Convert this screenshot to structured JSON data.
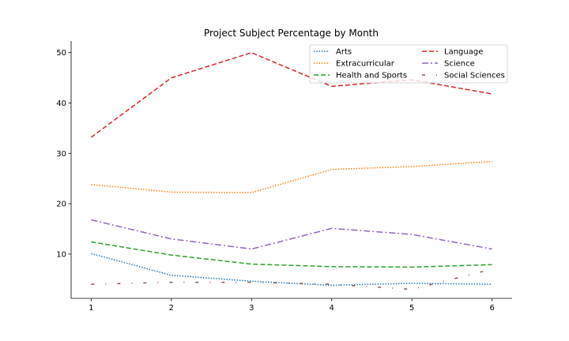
{
  "chart_data": {
    "type": "line",
    "title": "Project Subject Percentage by Month",
    "xlabel": "",
    "ylabel": "",
    "x": [
      1,
      2,
      3,
      4,
      5,
      6
    ],
    "xlim": [
      0.75,
      6.25
    ],
    "ylim": [
      1.2,
      52.3
    ],
    "xticks": [
      1,
      2,
      3,
      4,
      5,
      6
    ],
    "yticks": [
      10,
      20,
      30,
      40,
      50
    ],
    "grid": false,
    "legend": {
      "placement": "top-right",
      "columns": 2
    },
    "series": [
      {
        "name": "Arts",
        "color": "#1f77b4",
        "linestyle": "dotted",
        "values": [
          10.1,
          5.8,
          4.6,
          3.8,
          4.2,
          4.0
        ]
      },
      {
        "name": "Extracurricular",
        "color": "#ff7f0e",
        "linestyle": "dotted",
        "values": [
          23.8,
          22.3,
          22.2,
          26.8,
          27.4,
          28.4
        ]
      },
      {
        "name": "Health and Sports",
        "color": "#2ca02c",
        "linestyle": "dashed",
        "values": [
          12.4,
          9.8,
          8.0,
          7.5,
          7.4,
          7.9
        ]
      },
      {
        "name": "Language",
        "color": "#d62728",
        "linestyle": "dashed",
        "values": [
          33.2,
          45.0,
          50.0,
          43.3,
          44.6,
          41.8
        ]
      },
      {
        "name": "Science",
        "color": "#9467bd",
        "linestyle": "dashdot",
        "values": [
          16.8,
          13.0,
          11.0,
          15.1,
          13.9,
          11.0
        ]
      },
      {
        "name": "Social Sciences",
        "color": "#8c564b",
        "linestyle": "loosely-dashdot",
        "values": [
          4.0,
          4.4,
          4.4,
          4.0,
          3.0,
          7.0
        ]
      }
    ]
  }
}
